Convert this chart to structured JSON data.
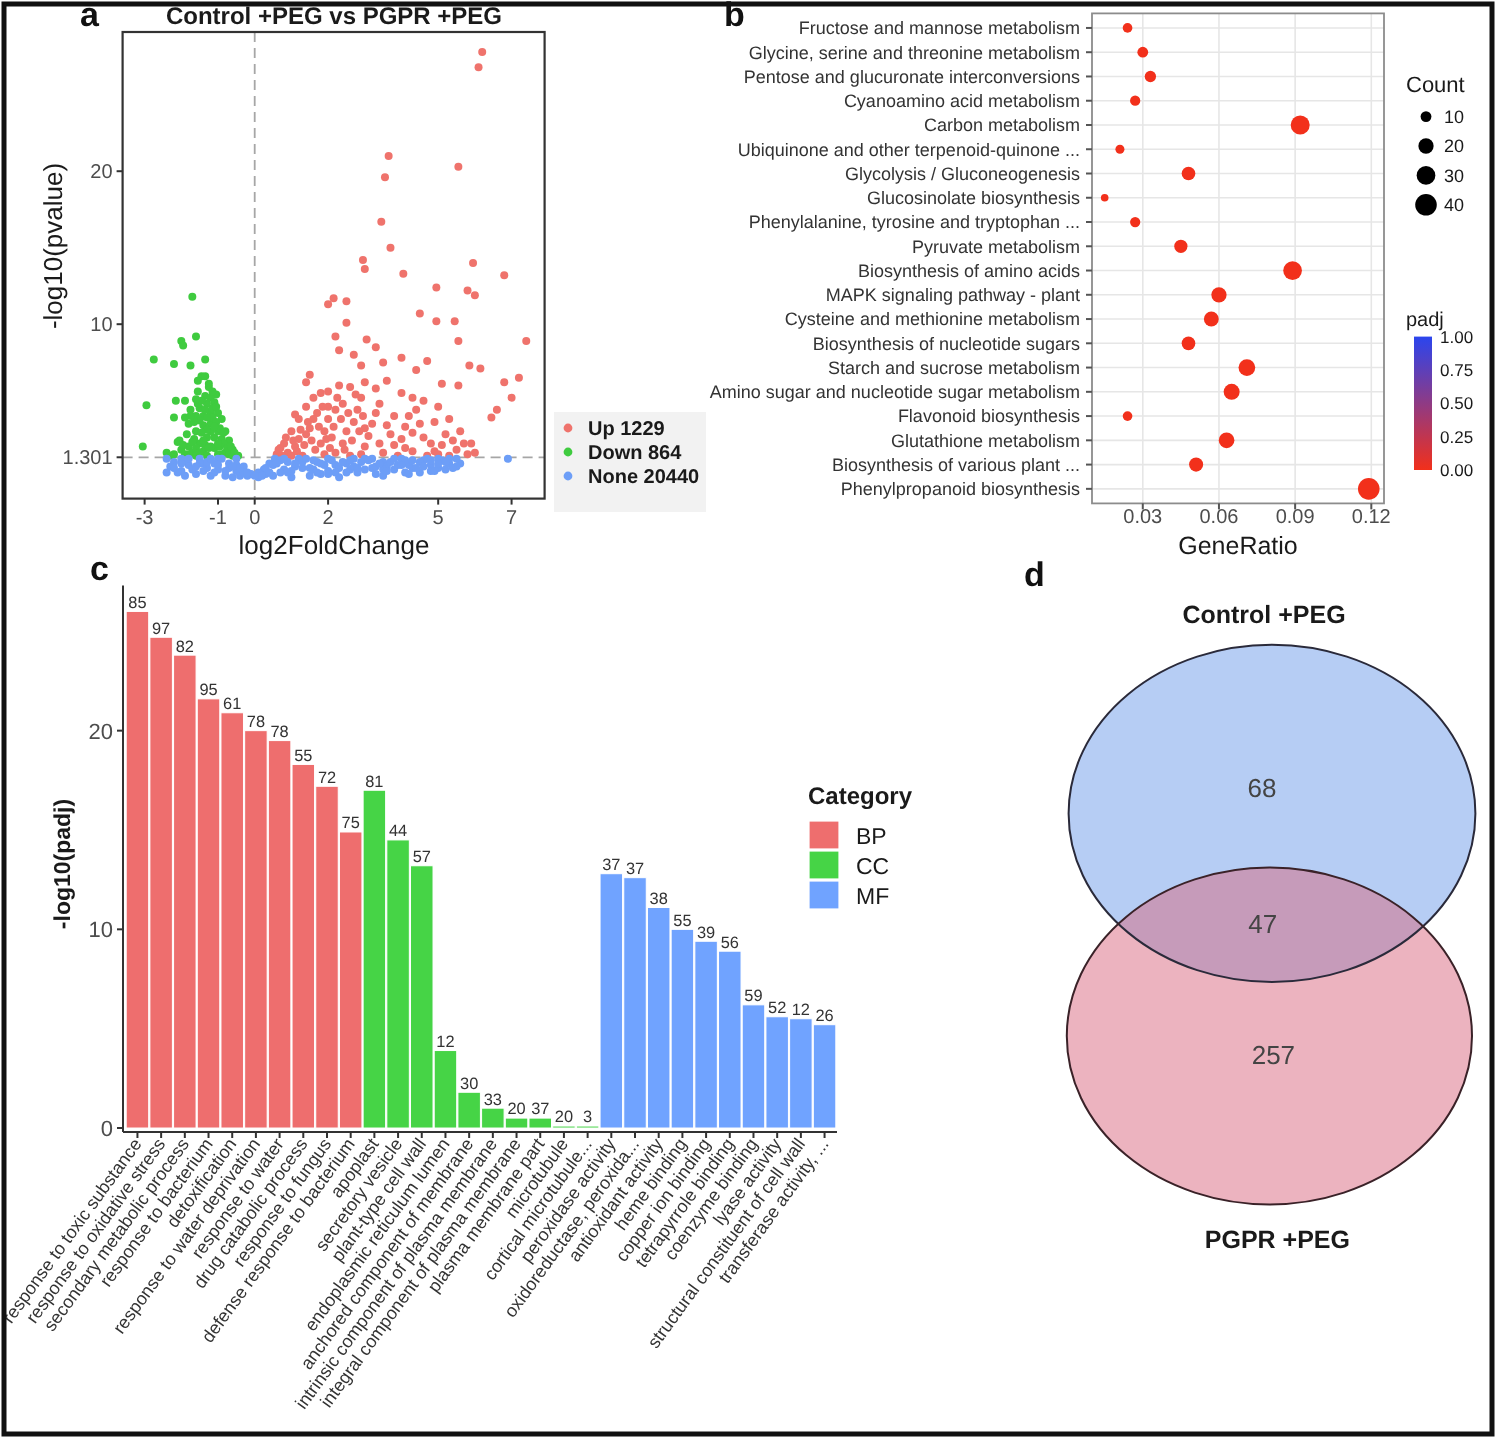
{
  "chart_data": [
    {
      "type": "scatter",
      "title": "Control +PEG vs PGPR +PEG",
      "annotations": [
        "a"
      ],
      "xlabel": "log2FoldChange",
      "ylabel": "-log10(pvalue)",
      "xlim": [
        -3.6,
        7.9
      ],
      "ylim": [
        -1.4,
        29.1
      ],
      "xticks": [
        -3,
        -1,
        0,
        2,
        5,
        7
      ],
      "yticks": [
        1.301,
        10,
        20
      ],
      "legend": "right",
      "marker": "circle",
      "ref_lines": [
        {
          "axis": "x",
          "value": 0,
          "line_style": "dashed",
          "color": "#a6a6a6"
        },
        {
          "axis": "y",
          "value": 1.301,
          "line_style": "dashed",
          "color": "#a6a6a6"
        }
      ],
      "series": [
        {
          "name": "Up 1229",
          "color": "#ef736c",
          "x": [
            6.2,
            6.1,
            3.65,
            3.55,
            5.55,
            3.45,
            3.7,
            2.95,
            3.0,
            4.05,
            5.95,
            6.8,
            4.95,
            5.8,
            6.0,
            2.15,
            2.0,
            2.5,
            4.5,
            4.95,
            5.45,
            5.55,
            7.4,
            3.05,
            2.2,
            2.5,
            5.85,
            6.15,
            7.2,
            6.8,
            7.0,
            6.6,
            6.45,
            5.1,
            5.55,
            1.5,
            1.4,
            1.1,
            2.7,
            3.3,
            4.0,
            4.4,
            2.9,
            3.5,
            2.3,
            4.7,
            0.6,
            0.8,
            1.0,
            1.2,
            1.4,
            1.6,
            1.8,
            2.0,
            2.3,
            2.6,
            3.0,
            3.3,
            3.6,
            4.0,
            4.3,
            4.6,
            5.0,
            5.3,
            5.6,
            5.9,
            6.0,
            0.9,
            1.2,
            1.5,
            1.8,
            2.0,
            2.2,
            2.5,
            2.8,
            3.0,
            3.2,
            3.5,
            3.8,
            4.0,
            4.3,
            4.5,
            4.8,
            5.0,
            5.2,
            5.5,
            1.3,
            2.6,
            3.9,
            4.7,
            5.8,
            1.7,
            2.4,
            3.4,
            4.2,
            2.1,
            3.7,
            0.7,
            1.1,
            1.4,
            1.6,
            1.9,
            2.2,
            2.4,
            2.7,
            2.9,
            3.1,
            3.3,
            3.6,
            3.8,
            4.1,
            4.4,
            4.6,
            4.9,
            5.1,
            5.4,
            5.7,
            1.0,
            1.9,
            2.9,
            3.4,
            4.1,
            4.9,
            5.3,
            2.0,
            3.0,
            4.3,
            0.65,
            0.75,
            0.85,
            1.05,
            1.15,
            1.25,
            1.35,
            1.45,
            1.55,
            1.65,
            1.75,
            1.85,
            1.95,
            2.05,
            2.15,
            2.25,
            2.35,
            2.45,
            2.55,
            2.65,
            2.75,
            2.85,
            2.95
          ],
          "values": [
            27.8,
            26.8,
            21.0,
            19.6,
            20.3,
            16.7,
            15.0,
            14.2,
            13.6,
            13.3,
            14.0,
            13.2,
            12.4,
            12.2,
            11.9,
            11.7,
            11.3,
            11.5,
            10.7,
            10.2,
            10.2,
            8.9,
            8.9,
            9.0,
            9.2,
            10.1,
            7.3,
            7.1,
            6.5,
            6.2,
            5.2,
            4.4,
            3.9,
            6.1,
            6.0,
            6.7,
            6.2,
            4.1,
            8.0,
            8.5,
            7.8,
            7.0,
            7.3,
            7.5,
            8.3,
            7.6,
            1.5,
            2.2,
            3.0,
            3.8,
            4.6,
            5.2,
            5.5,
            5.6,
            6.0,
            5.9,
            6.2,
            5.8,
            6.3,
            5.5,
            5.2,
            5.0,
            4.6,
            3.8,
            3.0,
            2.2,
            1.6,
            1.6,
            2.5,
            3.2,
            2.2,
            3.8,
            1.6,
            3.0,
            4.4,
            2.0,
            3.5,
            1.6,
            4.0,
            2.5,
            1.7,
            3.5,
            2.2,
            1.5,
            2.8,
            1.8,
            1.4,
            1.4,
            1.4,
            1.4,
            1.5,
            4.2,
            4.8,
            4.8,
            4.0,
            2.6,
            2.8,
            1.9,
            2.0,
            2.8,
            3.8,
            3.0,
            4.4,
            2.2,
            3.6,
            5.2,
            2.7,
            4.2,
            3.4,
            2.1,
            3.3,
            4.4,
            2.6,
            3.6,
            2.1,
            2.4,
            2.2,
            1.4,
            1.5,
            1.5,
            2.2,
            1.9,
            1.7,
            1.4,
            4.6,
            3.2,
            2.9,
            1.8,
            1.4,
            2.6,
            2.4,
            1.7,
            3.1,
            2.1,
            3.6,
            2.4,
            1.8,
            3.3,
            4.6,
            2.5,
            1.9,
            3.3,
            5.2,
            3.8,
            1.8,
            4.2,
            2.4,
            5.4,
            3.0,
            4.0
          ]
        },
        {
          "name": "Down 864",
          "color": "#3fcb3f",
          "x": [
            -2.75,
            -2.95,
            -3.05,
            -1.7,
            -1.6,
            -2.0,
            -1.95,
            -2.2,
            -1.75,
            -1.35,
            -1.45,
            -1.25,
            -1.05,
            -1.9,
            -2.15,
            -2.2,
            -2.1,
            -1.5,
            -1.3,
            -1.2,
            -1.1,
            -1.0,
            -0.9,
            -0.8,
            -0.7,
            -0.6,
            -0.45,
            -1.6,
            -1.8,
            -1.6,
            -1.4,
            -1.2,
            -1.0,
            -0.9,
            -1.3,
            -1.5,
            -1.8,
            -2.0,
            -1.7,
            -1.4,
            -1.1,
            -0.8,
            -1.0,
            -1.3,
            -1.6,
            -1.9,
            -2.2,
            -1.2,
            -1.4,
            -1.1,
            -0.7,
            -1.25,
            -1.15,
            -1.35,
            -1.55,
            -1.2,
            -1.5,
            -0.95,
            -1.35,
            -1.65,
            -0.6,
            -2.05,
            -1.85,
            -1.75,
            -1.65,
            -1.55,
            -1.45,
            -1.35,
            -1.15,
            -1.05,
            -0.95,
            -0.85,
            -0.75,
            -0.65,
            -0.55,
            -1.95,
            -1.8,
            -1.7,
            -1.6,
            -1.5,
            -1.4,
            -1.3,
            -1.2,
            -1.1,
            -1.0,
            -0.9,
            -0.85,
            -1.45,
            -1.3,
            -1.15,
            -1.6,
            -1.75,
            -1.25,
            -1.05,
            -2.3,
            -2.4,
            -1.9,
            -1.35,
            -1.55
          ],
          "values": [
            7.7,
            4.7,
            2.0,
            11.8,
            9.2,
            8.9,
            8.6,
            7.4,
            7.3,
            7.7,
            6.6,
            5.9,
            5.4,
            5.0,
            5.0,
            3.9,
            2.3,
            4.5,
            4.8,
            5.2,
            4.9,
            4.2,
            3.8,
            3.0,
            2.4,
            1.8,
            1.4,
            4.0,
            3.5,
            3.0,
            3.4,
            3.5,
            3.0,
            2.5,
            2.6,
            2.2,
            2.0,
            1.8,
            1.6,
            1.7,
            1.9,
            1.6,
            1.5,
            1.4,
            1.4,
            1.5,
            1.5,
            4.2,
            4.0,
            2.6,
            1.5,
            6.1,
            5.6,
            5.3,
            5.6,
            3.0,
            3.7,
            2.0,
            2.1,
            2.5,
            1.4,
            2.4,
            2.8,
            4.4,
            3.6,
            4.8,
            5.0,
            4.4,
            3.9,
            3.6,
            3.2,
            2.2,
            1.9,
            2.0,
            1.6,
            2.1,
            1.5,
            2.3,
            1.9,
            1.6,
            2.4,
            3.1,
            2.0,
            3.3,
            2.2,
            1.5,
            2.9,
            2.9,
            3.9,
            4.5,
            5.1,
            4.0,
            1.9,
            4.6,
            1.4,
            1.6,
            3.9,
            6.6,
            6.3
          ]
        },
        {
          "name": "None 20440",
          "color": "#6d9ef7",
          "x": [
            -2.4,
            -2.4,
            -2.2,
            -2.0,
            -2.0,
            -1.8,
            -1.6,
            -1.5,
            -1.3,
            -1.2,
            -1.0,
            -1.0,
            -0.8,
            -0.7,
            -0.5,
            -0.5,
            -0.3,
            -0.2,
            0.1,
            0.25,
            0.4,
            0.5,
            0.55,
            0.8,
            0.9,
            1.0,
            1.2,
            1.3,
            1.5,
            1.7,
            2.0,
            2.0,
            2.3,
            2.5,
            2.8,
            3.0,
            3.2,
            3.5,
            3.5,
            3.8,
            4.0,
            4.2,
            4.5,
            4.6,
            5.0,
            5.0,
            5.3,
            5.5,
            5.2,
            6.9,
            -1.9,
            -1.1,
            -0.6,
            0.7,
            1.1,
            1.6,
            1.8,
            2.2,
            2.6,
            2.7,
            3.3,
            3.6,
            4.1,
            4.3,
            4.8,
            4.8,
            5.6,
            0.3,
            -0.4,
            -1.4,
            -2.3,
            -2.1,
            -1.9,
            -1.7,
            -1.5,
            -1.3,
            -1.1,
            -0.9,
            -0.7,
            -0.5,
            -0.3,
            -0.1,
            0.1,
            0.3,
            0.5,
            0.7,
            0.9,
            1.1,
            1.3,
            1.5,
            1.7,
            1.9,
            2.1,
            2.3,
            2.5,
            2.7,
            2.9,
            3.1,
            3.3,
            3.5,
            3.7,
            3.9,
            4.1,
            4.3,
            4.5,
            4.7,
            4.9,
            5.1,
            5.3,
            5.5,
            -2.2,
            -1.8,
            -1.4,
            -1.0,
            -0.6,
            -0.2,
            0.2,
            0.6,
            1.0,
            1.4,
            1.8,
            2.2,
            2.6,
            3.0,
            3.4,
            3.8,
            4.2,
            4.6,
            5.0,
            5.4,
            -2.0,
            -1.6,
            -1.2,
            -0.8,
            -0.4,
            0.0,
            0.4,
            0.8,
            1.6,
            2.0,
            2.4,
            2.8,
            3.2,
            3.6,
            4.0,
            4.4,
            4.8,
            5.2
          ],
          "values": [
            1.2,
            0.3,
            1.0,
            1.2,
            0.4,
            0.8,
            0.2,
            1.2,
            0.6,
            0.1,
            1.2,
            0.5,
            0.1,
            0.9,
            1.2,
            0.4,
            0.7,
            0.1,
            0.0,
            0.5,
            0.9,
            0.1,
            1.2,
            0.5,
            1.0,
            0.0,
            1.2,
            0.6,
            0.1,
            1.0,
            1.2,
            0.4,
            0.0,
            0.9,
            0.3,
            1.2,
            0.6,
            1.0,
            0.1,
            0.5,
            1.2,
            0.8,
            0.3,
            1.1,
            1.2,
            0.6,
            0.9,
            1.2,
            0.5,
            1.2,
            0.1,
            0.9,
            0.0,
            0.3,
            0.7,
            0.5,
            0.2,
            0.8,
            0.5,
            1.2,
            0.2,
            0.7,
            0.3,
            1.1,
            0.8,
            0.4,
            0.9,
            0.2,
            0.1,
            0.9,
            0.7,
            0.3,
            1.1,
            0.5,
            0.9,
            1.0,
            0.3,
            1.2,
            0.6,
            0.8,
            0.3,
            0.2,
            0.3,
            0.6,
            0.8,
            1.1,
            0.3,
            0.9,
            1.0,
            0.6,
            0.3,
            0.8,
            1.1,
            0.6,
            0.3,
            0.7,
            1.0,
            1.1,
            0.7,
            0.5,
            1.0,
            0.8,
            1.1,
            0.6,
            1.0,
            1.2,
            0.4,
            1.1,
            1.2,
            0.7,
            0.6,
            1.2,
            0.4,
            0.8,
            0.7,
            0.3,
            0.1,
            0.9,
            0.4,
            1.2,
            0.9,
            0.3,
            1.1,
            0.5,
            0.9,
            1.2,
            0.2,
            0.7,
            0.9,
            0.6,
            0.9,
            0.7,
            1.2,
            0.4,
            0.6,
            0.1,
            0.3,
            1.2,
            1.1,
            0.2,
            1.0,
            0.6,
            1.2,
            0.4,
            0.8,
            0.6,
            1.1,
            1.0
          ]
        }
      ]
    },
    {
      "type": "bubble",
      "orientation": "horizontal",
      "annotations": [
        "b"
      ],
      "categories": [
        "Fructose and mannose metabolism",
        "Glycine, serine and threonine metabolism",
        "Pentose and glucuronate interconversions",
        "Cyanoamino acid metabolism",
        "Carbon metabolism",
        "Ubiquinone and other terpenoid-quinone ...",
        "Glycolysis / Gluconeogenesis",
        "Glucosinolate biosynthesis",
        "Phenylalanine, tyrosine and tryptophan ...",
        "Pyruvate metabolism",
        "Biosynthesis of amino acids",
        "MAPK signaling pathway - plant",
        "Cysteine and methionine metabolism",
        "Biosynthesis of nucleotide sugars",
        "Starch and sucrose metabolism",
        "Amino sugar and nucleotide sugar metabolism",
        "Flavonoid biosynthesis",
        "Glutathione metabolism",
        "Biosynthesis of various plant ...",
        "Phenylpropanoid biosynthesis"
      ],
      "values": [
        0.024,
        0.03,
        0.033,
        0.027,
        0.092,
        0.021,
        0.048,
        0.015,
        0.027,
        0.045,
        0.089,
        0.06,
        0.057,
        0.048,
        0.071,
        0.065,
        0.024,
        0.063,
        0.051,
        0.119
      ],
      "sizes": [
        8,
        10,
        11,
        9,
        31,
        7,
        16,
        5,
        9,
        15,
        30,
        20,
        19,
        16,
        24,
        22,
        8,
        21,
        17,
        40
      ],
      "cvalues": [
        0,
        0,
        0,
        0,
        0,
        0,
        0,
        0,
        0,
        0,
        0,
        0,
        0,
        0,
        0,
        0,
        0,
        0,
        0,
        0
      ],
      "xlabel": "GeneRatio",
      "xlim": [
        0.01,
        0.125
      ],
      "xticks": [
        0.03,
        0.06,
        0.09,
        0.12
      ],
      "grid": true,
      "legend_title": "Count",
      "size_legend": [
        10,
        20,
        30,
        40
      ],
      "clabel": "padj",
      "clim": [
        0,
        1
      ],
      "cticks": [
        {
          "value": 0,
          "label": "0.00"
        },
        {
          "value": 0.25,
          "label": "0.25"
        },
        {
          "value": 0.5,
          "label": "0.50"
        },
        {
          "value": 0.75,
          "label": "0.75"
        },
        {
          "value": 1,
          "label": "1.00"
        }
      ]
    },
    {
      "type": "bar",
      "categories": [
        "response to toxic substance",
        "response to oxidative stress",
        "secondary metabolic process",
        "response to bacterium",
        "detoxification",
        "response to water deprivation",
        "response to water",
        "drug catabolic process",
        "response to fungus",
        "defense response to bacterium",
        "apoplast",
        "secretory vesicle",
        "plant-type cell wall",
        "endoplasmic reticulum lumen",
        "anchored component of membrane",
        "intrinsic component of plasma membrane",
        "integral component of plasma membrane",
        "plasma membrane part",
        "microtubule",
        "cortical microtubule...",
        "peroxidase activity",
        "oxidoreductase, peroxida...",
        "antioxidant activity",
        "heme binding",
        "copper ion binding",
        "tetrapyrrole binding",
        "coenzyme binding",
        "lyase activity",
        "structural constituent of cell wall",
        "transferase activity, ..."
      ],
      "ylabel": "-log10(padj)",
      "ylim": [
        -0.2,
        27.3
      ],
      "yticks": [
        0,
        10,
        20
      ],
      "stacked": true,
      "legend": "right",
      "legend_title": "Category",
      "annotations": [
        "c",
        {
          "text": "85",
          "x": "response to toxic substance",
          "y": 26.0
        },
        {
          "text": "97",
          "x": "response to oxidative stress",
          "y": 24.7
        },
        {
          "text": "82",
          "x": "secondary metabolic process",
          "y": 23.8
        },
        {
          "text": "95",
          "x": "response to bacterium",
          "y": 21.6
        },
        {
          "text": "61",
          "x": "detoxification",
          "y": 20.9
        },
        {
          "text": "78",
          "x": "response to water deprivation",
          "y": 20.0
        },
        {
          "text": "78",
          "x": "response to water",
          "y": 19.5
        },
        {
          "text": "55",
          "x": "drug catabolic process",
          "y": 18.3
        },
        {
          "text": "72",
          "x": "response to fungus",
          "y": 17.2
        },
        {
          "text": "75",
          "x": "defense response to bacterium",
          "y": 14.9
        },
        {
          "text": "81",
          "x": "apoplast",
          "y": 17.0
        },
        {
          "text": "44",
          "x": "secretory vesicle",
          "y": 14.5
        },
        {
          "text": "57",
          "x": "plant-type cell wall",
          "y": 13.2
        },
        {
          "text": "12",
          "x": "endoplasmic reticulum lumen",
          "y": 3.9
        },
        {
          "text": "30",
          "x": "anchored component of membrane",
          "y": 1.8
        },
        {
          "text": "33",
          "x": "intrinsic component of plasma membrane",
          "y": 1.0
        },
        {
          "text": "20",
          "x": "integral component of plasma membrane",
          "y": 0.5
        },
        {
          "text": "37",
          "x": "plasma membrane part",
          "y": 0.5
        },
        {
          "text": "20",
          "x": "microtubule",
          "y": 0.1
        },
        {
          "text": "3",
          "x": "cortical microtubule...",
          "y": 0.1
        },
        {
          "text": "37",
          "x": "peroxidase activity",
          "y": 12.8
        },
        {
          "text": "37",
          "x": "oxidoreductase, peroxida...",
          "y": 12.6
        },
        {
          "text": "38",
          "x": "antioxidant activity",
          "y": 11.1
        },
        {
          "text": "55",
          "x": "heme binding",
          "y": 10.0
        },
        {
          "text": "39",
          "x": "copper ion binding",
          "y": 9.4
        },
        {
          "text": "56",
          "x": "tetrapyrrole binding",
          "y": 8.9
        },
        {
          "text": "59",
          "x": "coenzyme binding",
          "y": 6.2
        },
        {
          "text": "52",
          "x": "lyase activity",
          "y": 5.6
        },
        {
          "text": "12",
          "x": "structural constituent of cell wall",
          "y": 5.5
        },
        {
          "text": "26",
          "x": "transferase activity, ...",
          "y": 5.2
        }
      ],
      "series": [
        {
          "name": "BP",
          "color": "#ee6e6e",
          "values": [
            26.0,
            24.7,
            23.8,
            21.6,
            20.9,
            20.0,
            19.5,
            18.3,
            17.2,
            14.9,
            null,
            null,
            null,
            null,
            null,
            null,
            null,
            null,
            null,
            null,
            null,
            null,
            null,
            null,
            null,
            null,
            null,
            null,
            null,
            null
          ]
        },
        {
          "name": "CC",
          "color": "#46d446",
          "values": [
            null,
            null,
            null,
            null,
            null,
            null,
            null,
            null,
            null,
            null,
            17.0,
            14.5,
            13.2,
            3.9,
            1.8,
            1.0,
            0.5,
            0.5,
            0.1,
            0.1,
            null,
            null,
            null,
            null,
            null,
            null,
            null,
            null,
            null,
            null
          ]
        },
        {
          "name": "MF",
          "color": "#70a3ff",
          "values": [
            null,
            null,
            null,
            null,
            null,
            null,
            null,
            null,
            null,
            null,
            null,
            null,
            null,
            null,
            null,
            null,
            null,
            null,
            null,
            null,
            12.8,
            12.6,
            11.1,
            10.0,
            9.4,
            8.9,
            6.2,
            5.6,
            5.5,
            5.2
          ]
        }
      ]
    },
    {
      "type": "other",
      "annotations": [
        "d"
      ],
      "categories": [
        "Control +PEG",
        null,
        "PGPR +PEG"
      ],
      "values": [
        68,
        47,
        257
      ],
      "colors": [
        "#b6cdf4",
        "#c69bba",
        "#ecb3bf"
      ],
      "data_labels": true
    }
  ]
}
